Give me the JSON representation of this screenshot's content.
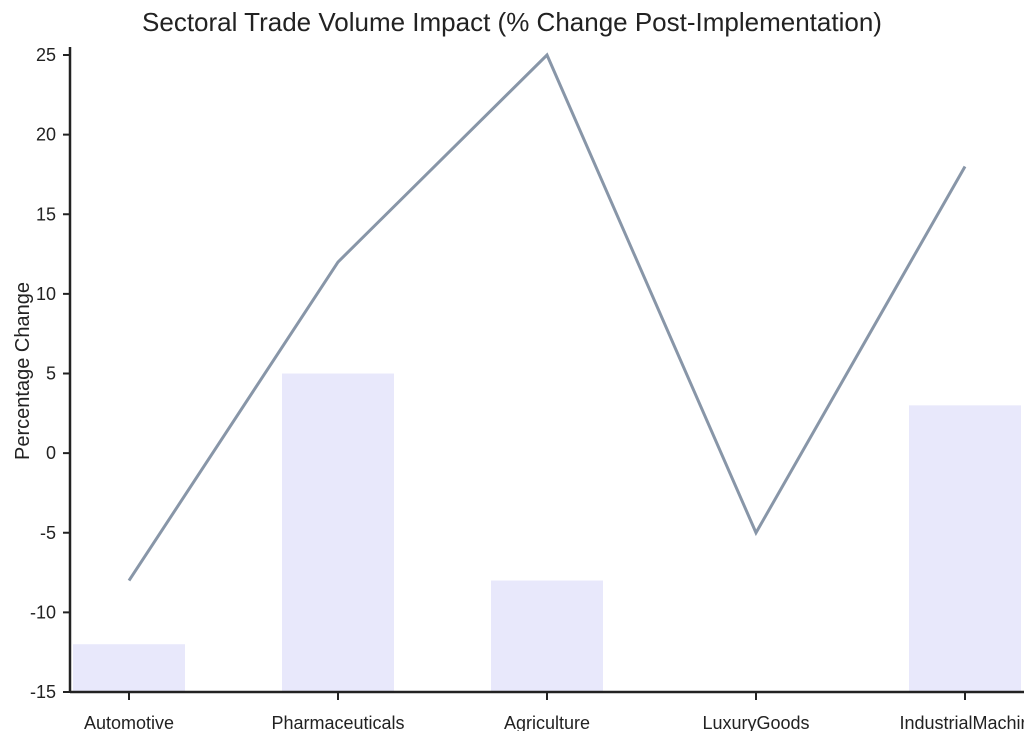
{
  "chart_data": {
    "type": "bar",
    "title": "Sectoral Trade Volume Impact (% Change Post-Implementation)",
    "xlabel": "",
    "ylabel": "Percentage Change",
    "categories": [
      "Automotive",
      "Pharmaceuticals",
      "Agriculture",
      "LuxuryGoods",
      "IndustrialMachin"
    ],
    "ylim": [
      -15,
      25
    ],
    "yticks": [
      25,
      20,
      15,
      10,
      5,
      0,
      -5,
      -10,
      -15
    ],
    "grid": false,
    "legend": "none",
    "series": [
      {
        "type": "bar",
        "values": [
          -12,
          5,
          -8,
          -15,
          3
        ],
        "color": "#e8e8fb"
      },
      {
        "type": "line",
        "values": [
          -8,
          12,
          25,
          -5,
          18
        ],
        "color": "#8896a8"
      }
    ]
  }
}
